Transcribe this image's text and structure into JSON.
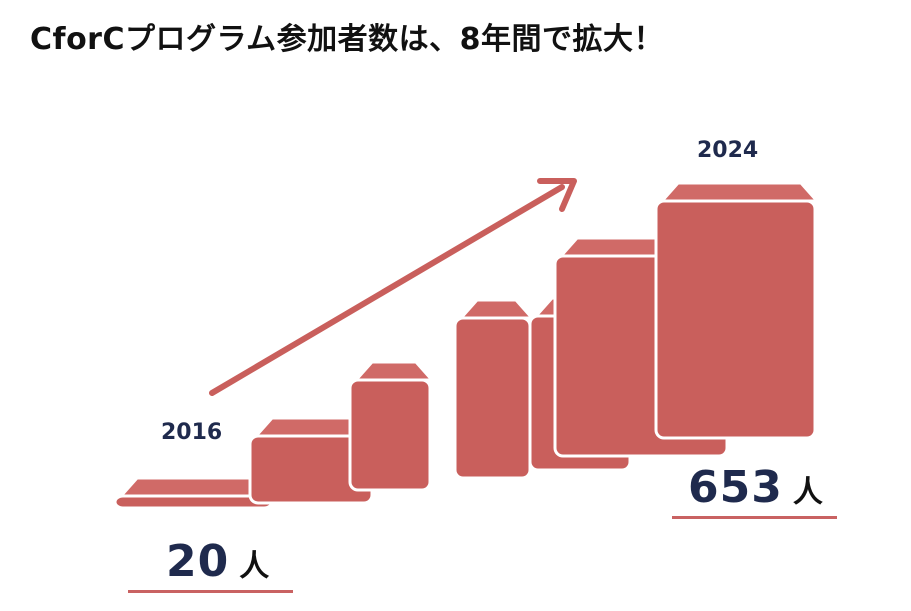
{
  "title": "CforCプログラム参加者数は、8年間で拡大！",
  "chart_data": {
    "type": "bar",
    "style": "3d-steps",
    "bar_count": 7,
    "start": {
      "year": "2016",
      "value": 20,
      "value_label": "20",
      "unit": "人"
    },
    "end": {
      "year": "2024",
      "value": 653,
      "value_label": "653",
      "unit": "人"
    },
    "trend_arrow": "up-right",
    "colors": {
      "bar": "#c95f5c",
      "bar_top": "#d06a67",
      "bar_edge": "#ffffff",
      "arrow": "#c95f5c",
      "text_dark": "#1f2a4d",
      "underline": "#c96262"
    }
  }
}
